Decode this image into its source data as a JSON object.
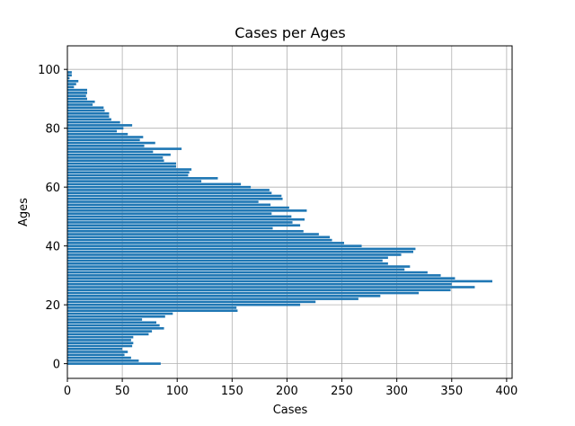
{
  "chart_data": {
    "type": "bar",
    "orientation": "horizontal",
    "title": "Cases per Ages",
    "xlabel": "Cases",
    "ylabel": "Ages",
    "xlim": [
      0,
      405
    ],
    "ylim": [
      -5,
      108
    ],
    "xticks": [
      0,
      50,
      100,
      150,
      200,
      250,
      300,
      350,
      400
    ],
    "yticks": [
      0,
      20,
      40,
      60,
      80,
      100
    ],
    "grid": true,
    "bar_color": "#1f77b4",
    "ages": [
      0,
      1,
      2,
      3,
      4,
      5,
      6,
      7,
      8,
      9,
      10,
      11,
      12,
      13,
      14,
      15,
      16,
      17,
      18,
      19,
      20,
      21,
      22,
      23,
      24,
      25,
      26,
      27,
      28,
      29,
      30,
      31,
      32,
      33,
      34,
      35,
      36,
      37,
      38,
      39,
      40,
      41,
      42,
      43,
      44,
      45,
      46,
      47,
      48,
      49,
      50,
      51,
      52,
      53,
      54,
      55,
      56,
      57,
      58,
      59,
      60,
      61,
      62,
      63,
      64,
      65,
      66,
      67,
      68,
      69,
      70,
      71,
      72,
      73,
      74,
      75,
      76,
      77,
      78,
      79,
      80,
      81,
      82,
      83,
      84,
      85,
      86,
      87,
      88,
      89,
      90,
      91,
      92,
      93,
      94,
      95,
      96,
      97,
      98,
      99
    ],
    "cases": [
      85,
      65,
      58,
      52,
      55,
      50,
      59,
      60,
      58,
      60,
      74,
      77,
      88,
      84,
      81,
      68,
      89,
      96,
      155,
      154,
      212,
      226,
      265,
      285,
      320,
      349,
      371,
      350,
      387,
      353,
      340,
      328,
      307,
      312,
      292,
      287,
      292,
      304,
      315,
      317,
      268,
      252,
      241,
      239,
      229,
      215,
      187,
      212,
      205,
      216,
      204,
      186,
      218,
      202,
      185,
      174,
      196,
      195,
      186,
      184,
      167,
      158,
      122,
      137,
      110,
      111,
      113,
      99,
      99,
      88,
      87,
      94,
      78,
      104,
      70,
      80,
      66,
      69,
      55,
      45,
      51,
      59,
      48,
      40,
      38,
      38,
      34,
      33,
      23,
      25,
      18,
      17,
      18,
      18,
      6,
      8,
      10,
      2,
      4,
      4
    ]
  }
}
